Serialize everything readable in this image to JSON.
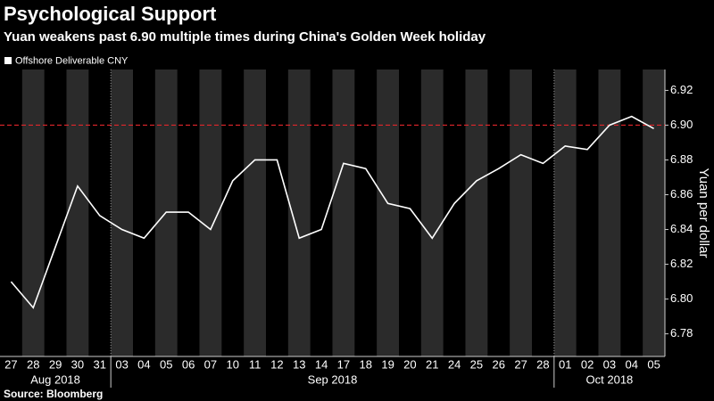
{
  "chart_data": {
    "type": "line",
    "title": "Psychological Support",
    "subtitle": "Yuan weakens past 6.90 multiple times during China's Golden Week holiday",
    "y_label": "Yuan per dollar",
    "source": "Source: Bloomberg",
    "categories": [
      "27",
      "28",
      "29",
      "30",
      "31",
      "03",
      "04",
      "05",
      "06",
      "07",
      "10",
      "11",
      "12",
      "13",
      "14",
      "17",
      "18",
      "19",
      "20",
      "21",
      "24",
      "25",
      "26",
      "27",
      "28",
      "01",
      "02",
      "03",
      "04",
      "05"
    ],
    "months": [
      "Aug 2018",
      "Sep 2018",
      "Oct 2018"
    ],
    "series": [
      {
        "name": "Offshore Deliverable CNY",
        "color": "#ffffff",
        "values": [
          6.81,
          6.795,
          6.83,
          6.865,
          6.848,
          6.84,
          6.835,
          6.85,
          6.85,
          6.84,
          6.868,
          6.88,
          6.88,
          6.835,
          6.84,
          6.878,
          6.875,
          6.855,
          6.852,
          6.835,
          6.855,
          6.868,
          6.875,
          6.883,
          6.878,
          6.888,
          6.886,
          6.9,
          6.905,
          6.898
        ]
      }
    ],
    "reference_line": {
      "value": 6.9,
      "color": "#e0262b"
    },
    "ylim": [
      6.767,
      6.932
    ],
    "yticks": [
      6.78,
      {
        "value": 6.8,
        "label": "6.80"
      },
      6.82,
      6.84,
      6.86,
      6.88,
      {
        "value": 6.9,
        "label": "6.90"
      },
      6.92
    ],
    "legend": "top-left"
  }
}
